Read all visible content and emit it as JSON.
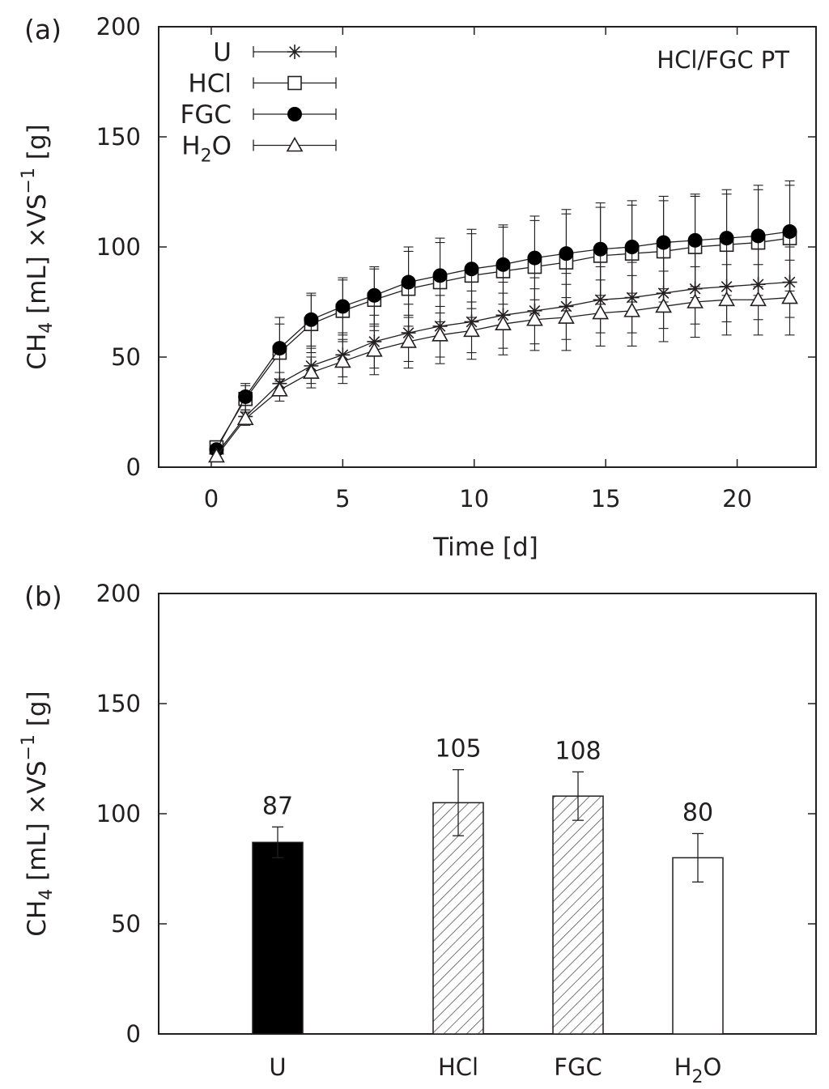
{
  "chart_data": [
    {
      "type": "line",
      "panel_label": "(a)",
      "annotation": "HCl/FGC PT",
      "xlabel": "Time [d]",
      "ylabel": {
        "base": "CH",
        "sub": "4",
        "mid": " [mL] ×VS",
        "sup": "−1",
        "end": " [g]"
      },
      "xlim": [
        -2,
        23
      ],
      "ylim": [
        0,
        200
      ],
      "xticks": [
        "0",
        "5",
        "10",
        "15",
        "20"
      ],
      "yticks": [
        "0",
        "50",
        "100",
        "150",
        "200"
      ],
      "legend_position": "top-left",
      "x": [
        0.2,
        1.3,
        2.6,
        3.8,
        5.0,
        6.2,
        7.5,
        8.7,
        9.9,
        11.1,
        12.3,
        13.5,
        14.8,
        16.0,
        17.2,
        18.4,
        19.6,
        20.8,
        22.0
      ],
      "series": [
        {
          "name": "U",
          "marker": "asterisk",
          "y": [
            6,
            23,
            38,
            46,
            51,
            57,
            61,
            64,
            66,
            69,
            71,
            73,
            76,
            77,
            79,
            81,
            82,
            83,
            84
          ],
          "err": [
            2,
            3,
            5,
            8,
            10,
            12,
            13,
            14,
            14,
            15,
            15,
            15,
            15,
            16,
            16,
            16,
            16,
            16,
            16
          ]
        },
        {
          "name": "HCl",
          "marker": "open-square",
          "y": [
            9,
            31,
            52,
            65,
            71,
            76,
            81,
            84,
            87,
            89,
            91,
            93,
            96,
            97,
            98,
            100,
            101,
            102,
            104
          ],
          "err": [
            2,
            6,
            13,
            13,
            14,
            14,
            17,
            18,
            19,
            20,
            21,
            22,
            22,
            22,
            23,
            23,
            23,
            24,
            24
          ]
        },
        {
          "name": "FGC",
          "marker": "filled-circle",
          "y": [
            8,
            32,
            54,
            67,
            73,
            78,
            84,
            87,
            90,
            92,
            95,
            97,
            99,
            100,
            102,
            103,
            104,
            105,
            107
          ],
          "err": [
            2,
            6,
            14,
            12,
            13,
            13,
            16,
            17,
            18,
            18,
            19,
            20,
            21,
            21,
            21,
            21,
            22,
            23,
            23
          ]
        },
        {
          "name": "H2O",
          "label_base": "H",
          "label_sub": "2",
          "label_end": "O",
          "marker": "open-triangle",
          "y": [
            5,
            22,
            35,
            43,
            48,
            53,
            57,
            60,
            62,
            65,
            67,
            68,
            70,
            71,
            73,
            75,
            76,
            76,
            77
          ],
          "err": [
            2,
            3,
            5,
            7,
            10,
            11,
            12,
            13,
            13,
            14,
            14,
            15,
            15,
            16,
            16,
            16,
            16,
            16,
            17
          ]
        }
      ]
    },
    {
      "type": "bar",
      "panel_label": "(b)",
      "ylabel": {
        "base": "CH",
        "sub": "4",
        "mid": " [mL] ×VS",
        "sup": "−1",
        "end": " [g]"
      },
      "ylim": [
        0,
        200
      ],
      "yticks": [
        "0",
        "50",
        "100",
        "150",
        "200"
      ],
      "categories": [
        {
          "label": "U",
          "base": "U",
          "sub": "",
          "end": ""
        },
        {
          "label": "HCl",
          "base": "HCl",
          "sub": "",
          "end": ""
        },
        {
          "label": "FGC",
          "base": "FGC",
          "sub": "",
          "end": ""
        },
        {
          "label": "H2O",
          "base": "H",
          "sub": "2",
          "end": "O"
        }
      ],
      "values": [
        87,
        105,
        108,
        80
      ],
      "errors": [
        7,
        15,
        11,
        11
      ],
      "data_labels": [
        "87",
        "105",
        "108",
        "80"
      ],
      "fills": [
        "solid-black",
        "hatched",
        "hatched",
        "white"
      ]
    }
  ],
  "colors": {
    "ink": "#231f20",
    "background": "#ffffff"
  }
}
